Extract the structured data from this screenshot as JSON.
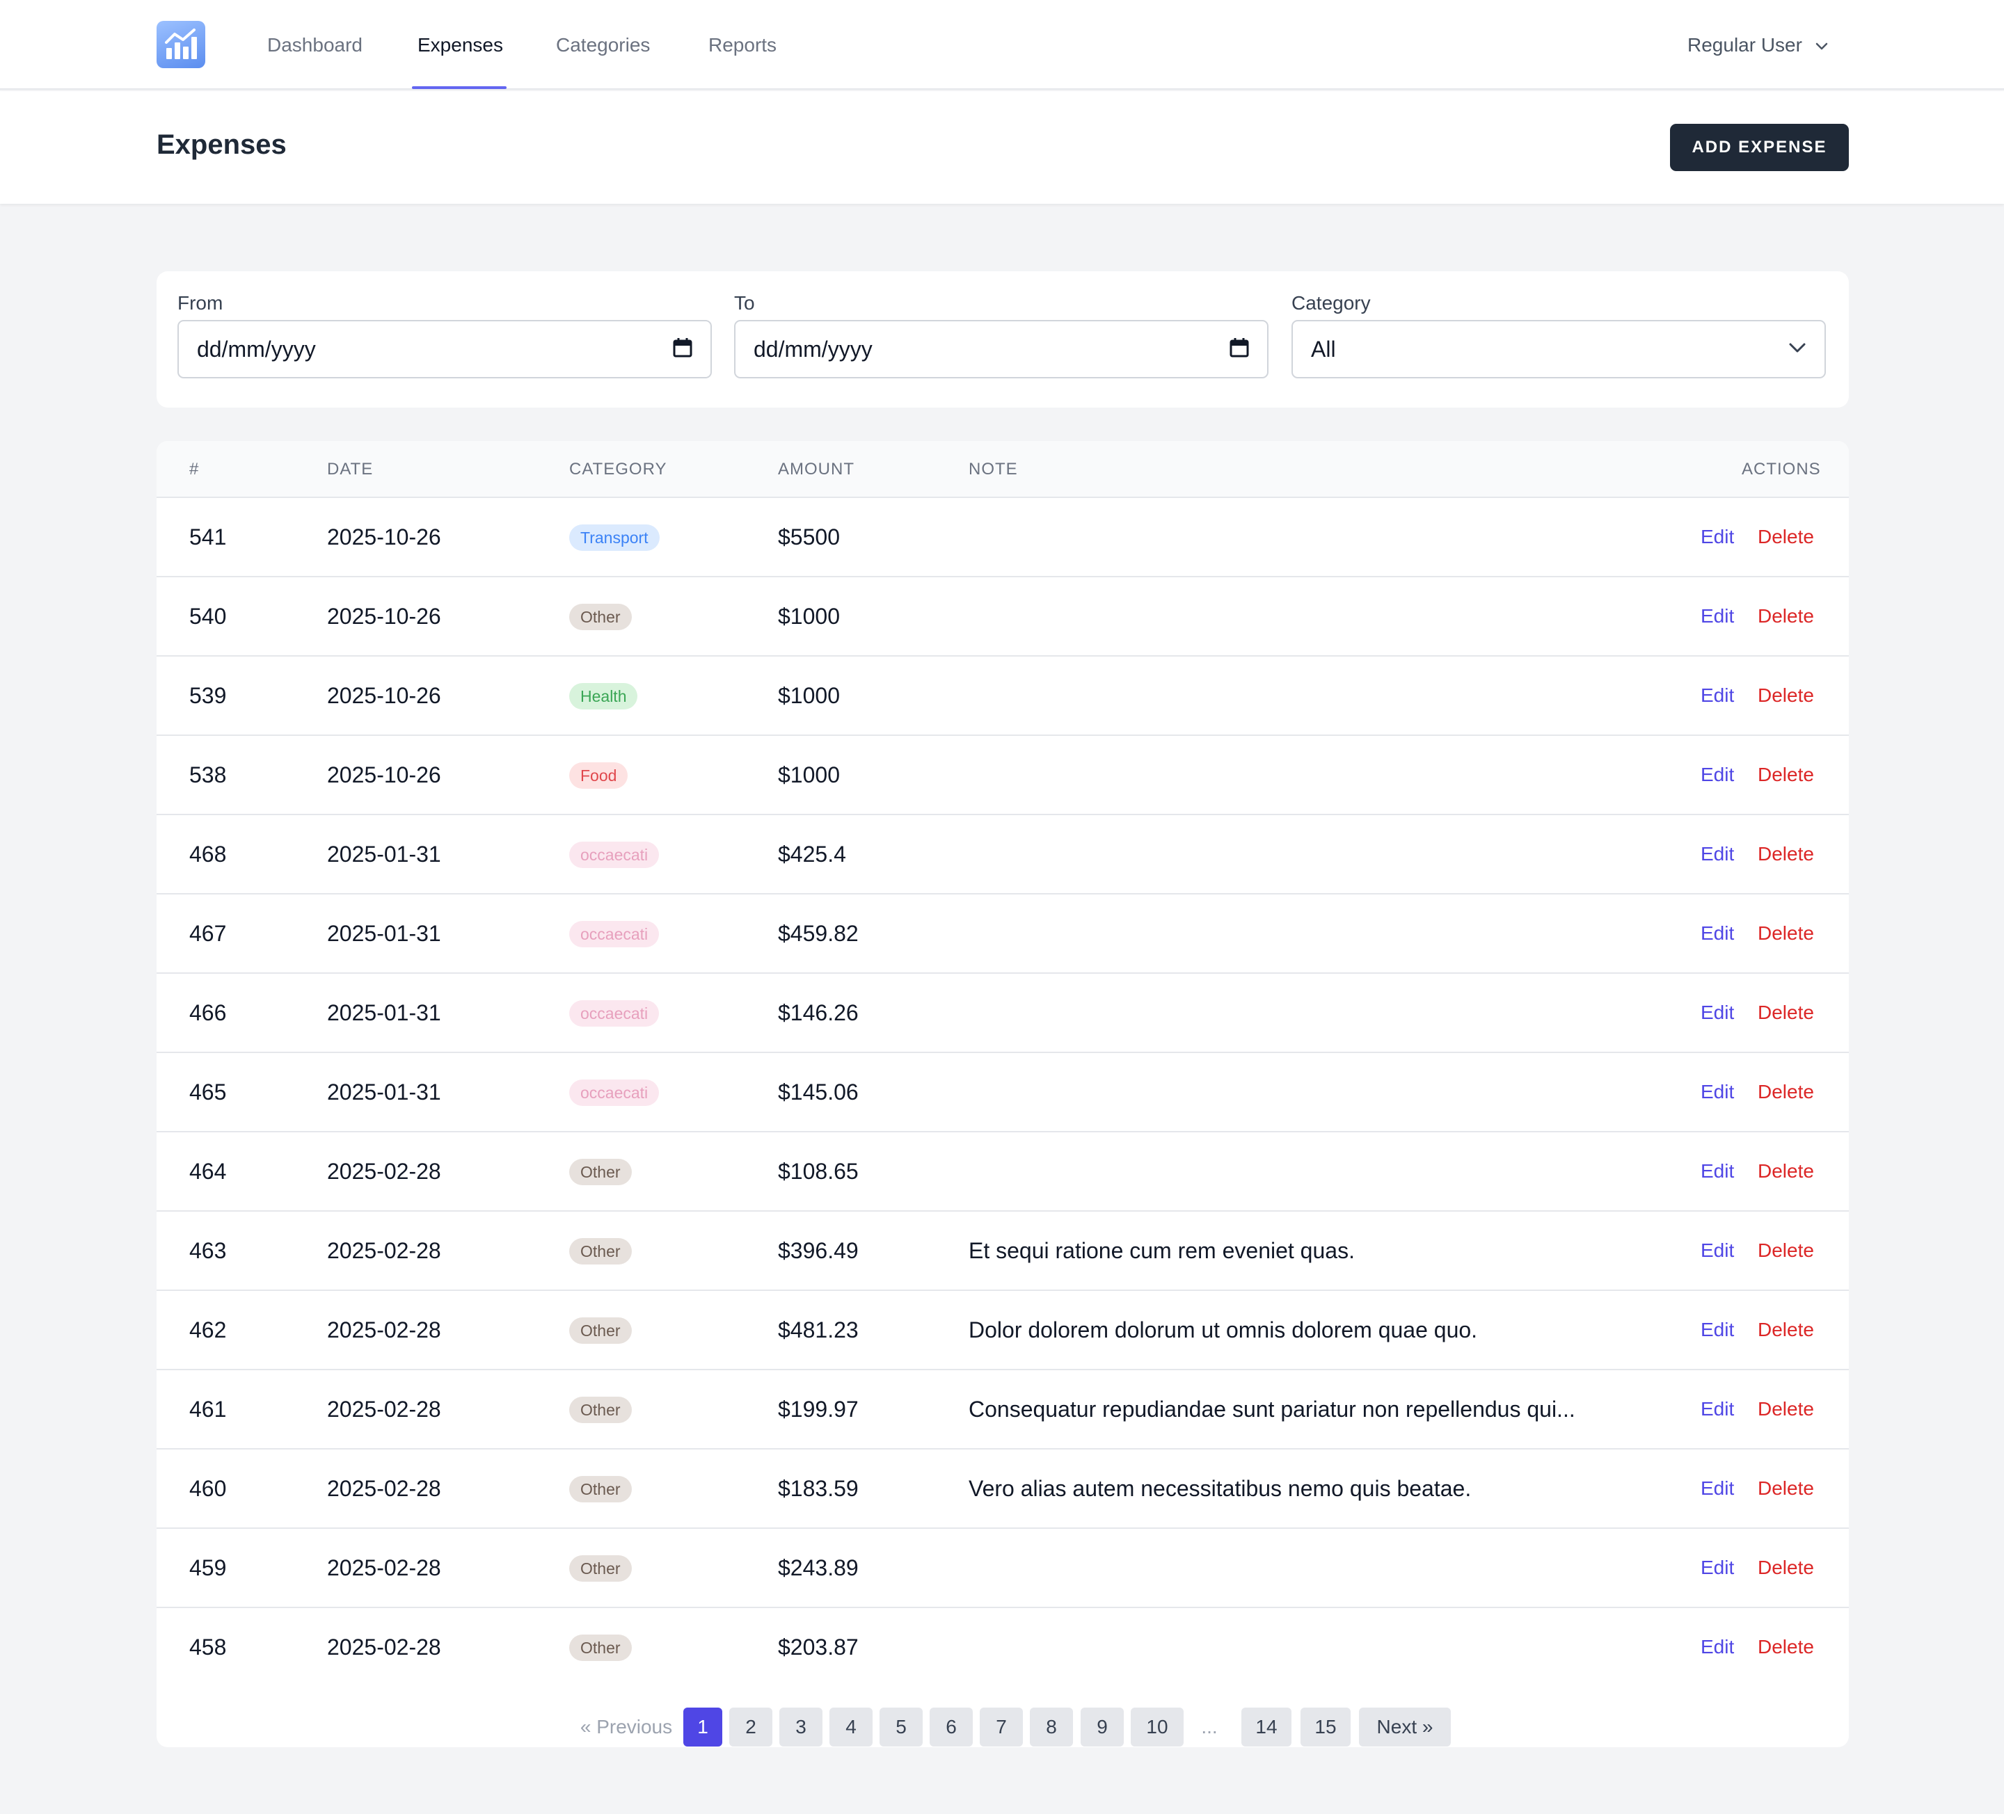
{
  "nav": {
    "links": [
      "Dashboard",
      "Expenses",
      "Categories",
      "Reports"
    ],
    "active": "Expenses",
    "user": "Regular User"
  },
  "header": {
    "title": "Expenses",
    "add_button": "ADD EXPENSE"
  },
  "filters": {
    "from_label": "From",
    "from_value": "dd/mm/yyyy",
    "to_label": "To",
    "to_value": "dd/mm/yyyy",
    "category_label": "Category",
    "category_value": "All"
  },
  "table": {
    "columns": [
      "#",
      "DATE",
      "CATEGORY",
      "AMOUNT",
      "NOTE",
      "ACTIONS"
    ],
    "edit_label": "Edit",
    "delete_label": "Delete",
    "rows": [
      {
        "id": "541",
        "date": "2025-10-26",
        "category": "Transport",
        "amount": "$5500",
        "note": ""
      },
      {
        "id": "540",
        "date": "2025-10-26",
        "category": "Other",
        "amount": "$1000",
        "note": ""
      },
      {
        "id": "539",
        "date": "2025-10-26",
        "category": "Health",
        "amount": "$1000",
        "note": ""
      },
      {
        "id": "538",
        "date": "2025-10-26",
        "category": "Food",
        "amount": "$1000",
        "note": ""
      },
      {
        "id": "468",
        "date": "2025-01-31",
        "category": "occaecati",
        "amount": "$425.4",
        "note": ""
      },
      {
        "id": "467",
        "date": "2025-01-31",
        "category": "occaecati",
        "amount": "$459.82",
        "note": ""
      },
      {
        "id": "466",
        "date": "2025-01-31",
        "category": "occaecati",
        "amount": "$146.26",
        "note": ""
      },
      {
        "id": "465",
        "date": "2025-01-31",
        "category": "occaecati",
        "amount": "$145.06",
        "note": ""
      },
      {
        "id": "464",
        "date": "2025-02-28",
        "category": "Other",
        "amount": "$108.65",
        "note": ""
      },
      {
        "id": "463",
        "date": "2025-02-28",
        "category": "Other",
        "amount": "$396.49",
        "note": "Et sequi ratione cum rem eveniet quas."
      },
      {
        "id": "462",
        "date": "2025-02-28",
        "category": "Other",
        "amount": "$481.23",
        "note": "Dolor dolorem dolorum ut omnis dolorem quae quo."
      },
      {
        "id": "461",
        "date": "2025-02-28",
        "category": "Other",
        "amount": "$199.97",
        "note": "Consequatur repudiandae sunt pariatur non repellendus qui..."
      },
      {
        "id": "460",
        "date": "2025-02-28",
        "category": "Other",
        "amount": "$183.59",
        "note": "Vero alias autem necessitatibus nemo quis beatae."
      },
      {
        "id": "459",
        "date": "2025-02-28",
        "category": "Other",
        "amount": "$243.89",
        "note": ""
      },
      {
        "id": "458",
        "date": "2025-02-28",
        "category": "Other",
        "amount": "$203.87",
        "note": ""
      }
    ]
  },
  "pagination": {
    "previous": "« Previous",
    "pages": [
      "1",
      "2",
      "3",
      "4",
      "5",
      "6",
      "7",
      "8",
      "9",
      "10",
      "...",
      "14",
      "15"
    ],
    "current": "1",
    "next": "Next »"
  },
  "colors": {
    "accent": "#4f46e5",
    "danger": "#dc2626",
    "dark_button": "#1f2937"
  }
}
